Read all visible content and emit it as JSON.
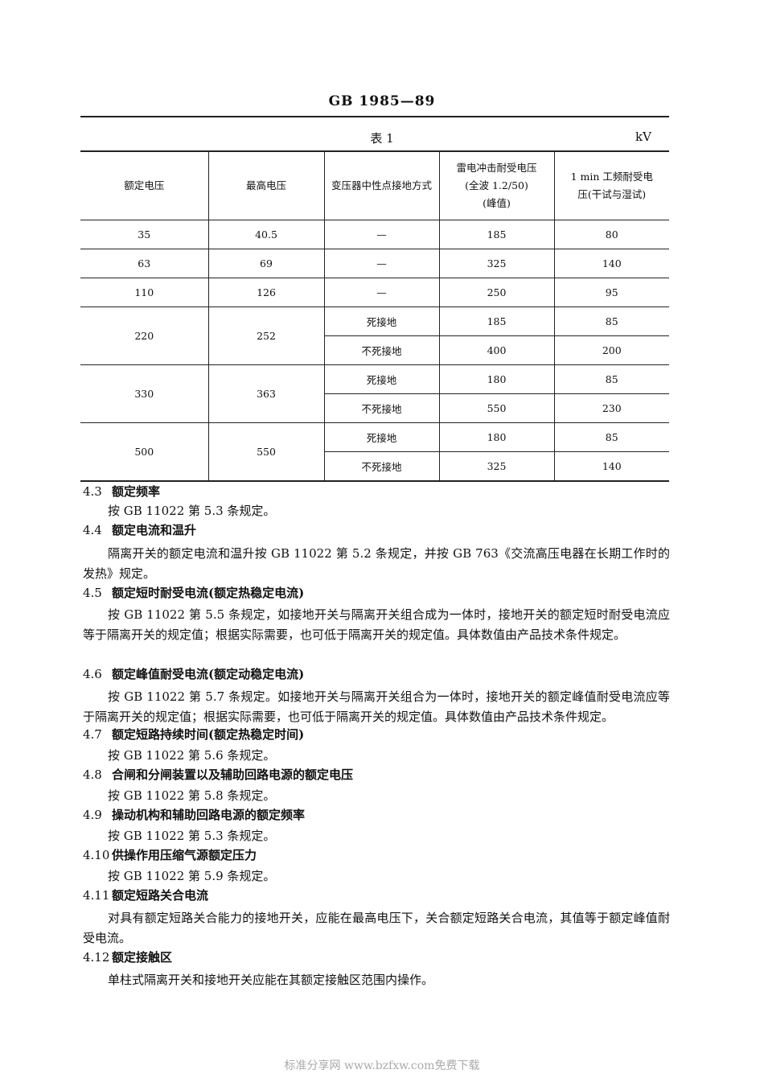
{
  "header": {
    "doc_code": "GB 1985—89"
  },
  "table": {
    "title": "表 1",
    "unit": "kV",
    "columns": [
      "额定电压",
      "最高电压",
      "变压器中性点接地方式",
      "雷电冲击耐受电压\n(全波 1.2/50)\n(峰值)",
      "1 min 工频耐受电\n压(干试与湿试)"
    ],
    "rows": [
      {
        "rated": "35",
        "max": "40.5",
        "sub": [
          {
            "mode": "—",
            "impulse": "185",
            "power": "80"
          }
        ]
      },
      {
        "rated": "63",
        "max": "69",
        "sub": [
          {
            "mode": "—",
            "impulse": "325",
            "power": "140"
          }
        ]
      },
      {
        "rated": "110",
        "max": "126",
        "sub": [
          {
            "mode": "—",
            "impulse": "250",
            "power": "95"
          }
        ]
      },
      {
        "rated": "220",
        "max": "252",
        "sub": [
          {
            "mode": "死接地",
            "impulse": "185",
            "power": "85"
          },
          {
            "mode": "不死接地",
            "impulse": "400",
            "power": "200"
          }
        ]
      },
      {
        "rated": "330",
        "max": "363",
        "sub": [
          {
            "mode": "死接地",
            "impulse": "180",
            "power": "85"
          },
          {
            "mode": "不死接地",
            "impulse": "550",
            "power": "230"
          }
        ]
      },
      {
        "rated": "500",
        "max": "550",
        "sub": [
          {
            "mode": "死接地",
            "impulse": "180",
            "power": "85"
          },
          {
            "mode": "不死接地",
            "impulse": "325",
            "power": "140"
          }
        ]
      }
    ]
  },
  "sections": [
    {
      "num": "4.3",
      "title": "额定频率",
      "body": "按 GB 11022 第 5.3 条规定。"
    },
    {
      "num": "4.4",
      "title": "额定电流和温升",
      "body": "隔离开关的额定电流和温升按 GB 11022 第 5.2 条规定，并按 GB 763《交流高压电器在长期工作时的发热》规定。"
    },
    {
      "num": "4.5",
      "title": "额定短时耐受电流(额定热稳定电流)",
      "body": "按 GB 11022 第 5.5 条规定，如接地开关与隔离开关组合成为一体时，接地开关的额定短时耐受电流应等于隔离开关的规定值；根据实际需要，也可低于隔离开关的规定值。具体数值由产品技术条件规定。"
    },
    {
      "num": "4.6",
      "title": "额定峰值耐受电流(额定动稳定电流)",
      "body": "按 GB 11022 第 5.7 条规定。如接地开关与隔离开关组合为一体时，接地开关的额定峰值耐受电流应等于隔离开关的规定值；根据实际需要，也可低于隔离开关的规定值。具体数值由产品技术条件规定。"
    },
    {
      "num": "4.7",
      "title": "额定短路持续时间(额定热稳定时间)",
      "body": "按 GB 11022 第 5.6 条规定。"
    },
    {
      "num": "4.8",
      "title": "合闸和分闸装置以及辅助回路电源的额定电压",
      "body": "按 GB 11022 第 5.8 条规定。"
    },
    {
      "num": "4.9",
      "title": "操动机构和辅助回路电源的额定频率",
      "body": "按 GB 11022 第 5.3 条规定。"
    },
    {
      "num": "4.10",
      "title": "供操作用压缩气源额定压力",
      "body": "按 GB 11022 第 5.9 条规定。"
    },
    {
      "num": "4.11",
      "title": "额定短路关合电流",
      "body": "对具有额定短路关合能力的接地开关，应能在最高电压下，关合额定短路关合电流，其值等于额定峰值耐受电流。"
    },
    {
      "num": "4.12",
      "title": "额定接触区",
      "body": "单柱式隔离开关和接地开关应能在其额定接触区范围内操作。"
    }
  ],
  "footer": {
    "watermark": "标准分享网 www.bzfxw.com免费下载"
  }
}
